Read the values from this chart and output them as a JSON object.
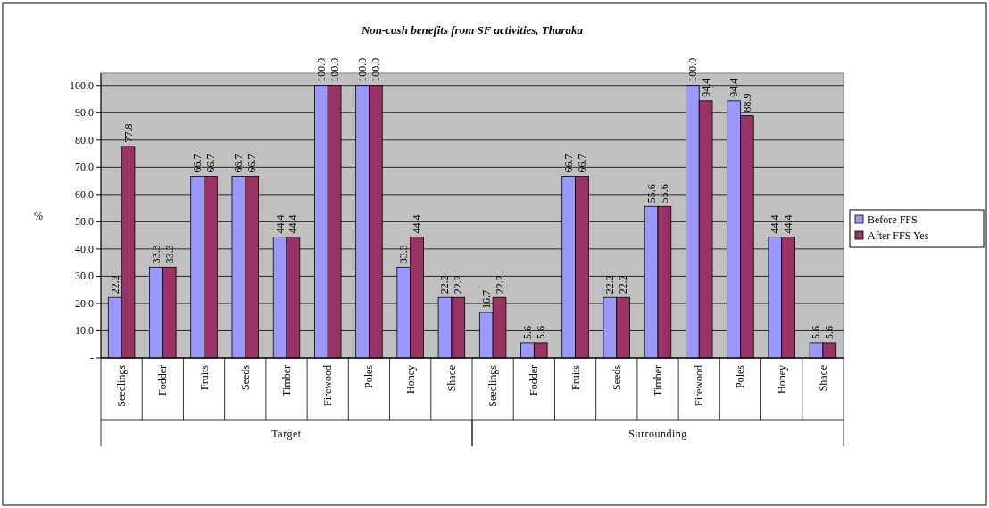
{
  "chart_data": {
    "type": "bar",
    "title": "Non-cash benefits from SF activities, Tharaka",
    "ylabel": "%",
    "categories": [
      "Seedlings",
      "Fodder",
      "Fruits",
      "Seeds",
      "Timber",
      "Firewood",
      "Poles",
      "Honey",
      "Shade",
      "Seedlings",
      "Fodder",
      "Fruits",
      "Seeds",
      "Timber",
      "Firewood",
      "Poles",
      "Honey",
      "Shade"
    ],
    "annotations": [
      "Target",
      "Surrounding"
    ],
    "series": [
      {
        "name": "Before FFS",
        "color": "#9999ff",
        "values": [
          22.2,
          33.3,
          66.7,
          66.7,
          44.4,
          100,
          100,
          33.3,
          22.2,
          16.7,
          5.6,
          66.7,
          22.2,
          55.6,
          100,
          94.4,
          44.4,
          5.6
        ],
        "value_labels": [
          "22.2",
          "33.3",
          "66.7",
          "66.7",
          "44.4",
          "100.0",
          "100.0",
          "33.3",
          "22.2",
          "16.7",
          "5.6",
          "66.7",
          "22.2",
          "55.6",
          "100.0",
          "94.4",
          "44.4",
          "5.6"
        ]
      },
      {
        "name": "After FFS Yes",
        "color": "#993366",
        "values": [
          77.8,
          33.3,
          66.7,
          66.7,
          44.4,
          100,
          100,
          44.4,
          22.2,
          22.2,
          5.6,
          66.7,
          22.2,
          55.6,
          94.4,
          88.9,
          44.4,
          5.6
        ],
        "value_labels": [
          "77.8",
          "33.3",
          "66.7",
          "66.7",
          "44.4",
          "100.0",
          "100.0",
          "44.4",
          "22.2",
          "22.2",
          "5.6",
          "66.7",
          "22.2",
          "55.6",
          "94.4",
          "88.9",
          "44.4",
          "5.6"
        ]
      }
    ],
    "ylim": [
      0,
      104.5
    ],
    "yticks": [
      {
        "value": 0,
        "label": "-"
      },
      {
        "value": 10,
        "label": "10.0"
      },
      {
        "value": 20,
        "label": "20.0"
      },
      {
        "value": 30,
        "label": "30.0"
      },
      {
        "value": 40,
        "label": "40.0"
      },
      {
        "value": 50,
        "label": "50.0"
      },
      {
        "value": 60,
        "label": "60.0"
      },
      {
        "value": 70,
        "label": "70.0"
      },
      {
        "value": 80,
        "label": "80.0"
      },
      {
        "value": 90,
        "label": "90.0"
      },
      {
        "value": 100,
        "label": "100.0"
      }
    ],
    "grid": "y",
    "legend": "right"
  }
}
